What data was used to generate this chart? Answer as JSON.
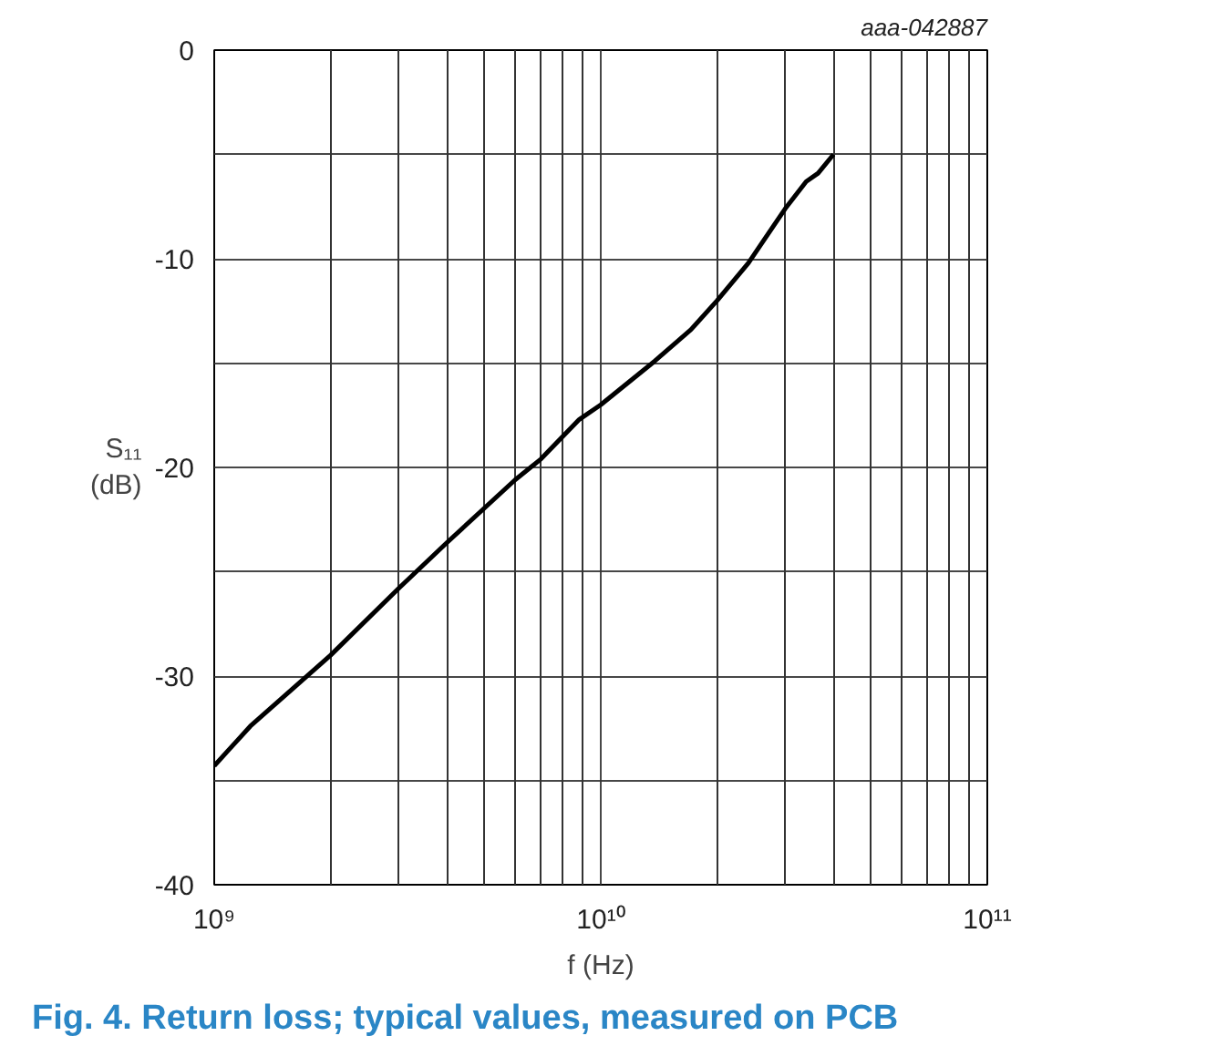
{
  "chart_data": {
    "type": "line",
    "title": "Fig. 4.    Return loss; typical values, measured on PCB",
    "xlabel": "f (Hz)",
    "ylabel": "S₁₁ (dB)",
    "annotations": [
      "aaa-042887"
    ],
    "x": [
      1000000000.0,
      1240000000.0,
      2000000000.0,
      3000000000.0,
      4000000000.0,
      6000000000.0,
      7000000000.0,
      8800000000.0,
      10000000000.0,
      13800000000.0,
      17100000000.0,
      20000000000.0,
      24100000000.0,
      30000000000.0,
      34000000000.0,
      36500000000.0,
      40000000000.0
    ],
    "series": [
      {
        "color": "#000000",
        "values": [
          -34.3,
          -32.4,
          -29.0,
          -25.8,
          -23.6,
          -20.6,
          -19.6,
          -17.7,
          -17.0,
          -14.9,
          -13.4,
          -12.0,
          -10.2,
          -7.6,
          -6.3,
          -5.9,
          -5.0
        ]
      }
    ],
    "log": "x",
    "xlim": [
      1000000000.0,
      100000000000.0
    ],
    "xticks": [
      {
        "value": 1000000000.0,
        "label": "10⁹"
      },
      {
        "value": 10000000000.0,
        "label": "10¹⁰"
      },
      {
        "value": 100000000000.0,
        "label": "10¹¹"
      }
    ],
    "ylim": [
      -40,
      0
    ],
    "yticks": [
      0,
      {
        "value": -5,
        "label": null
      },
      -10,
      {
        "value": -15,
        "label": null
      },
      -20,
      {
        "value": -25,
        "label": null
      },
      -30,
      {
        "value": -35,
        "label": null
      },
      -40
    ],
    "grid": true,
    "marker": "none",
    "line_style": "solid"
  }
}
